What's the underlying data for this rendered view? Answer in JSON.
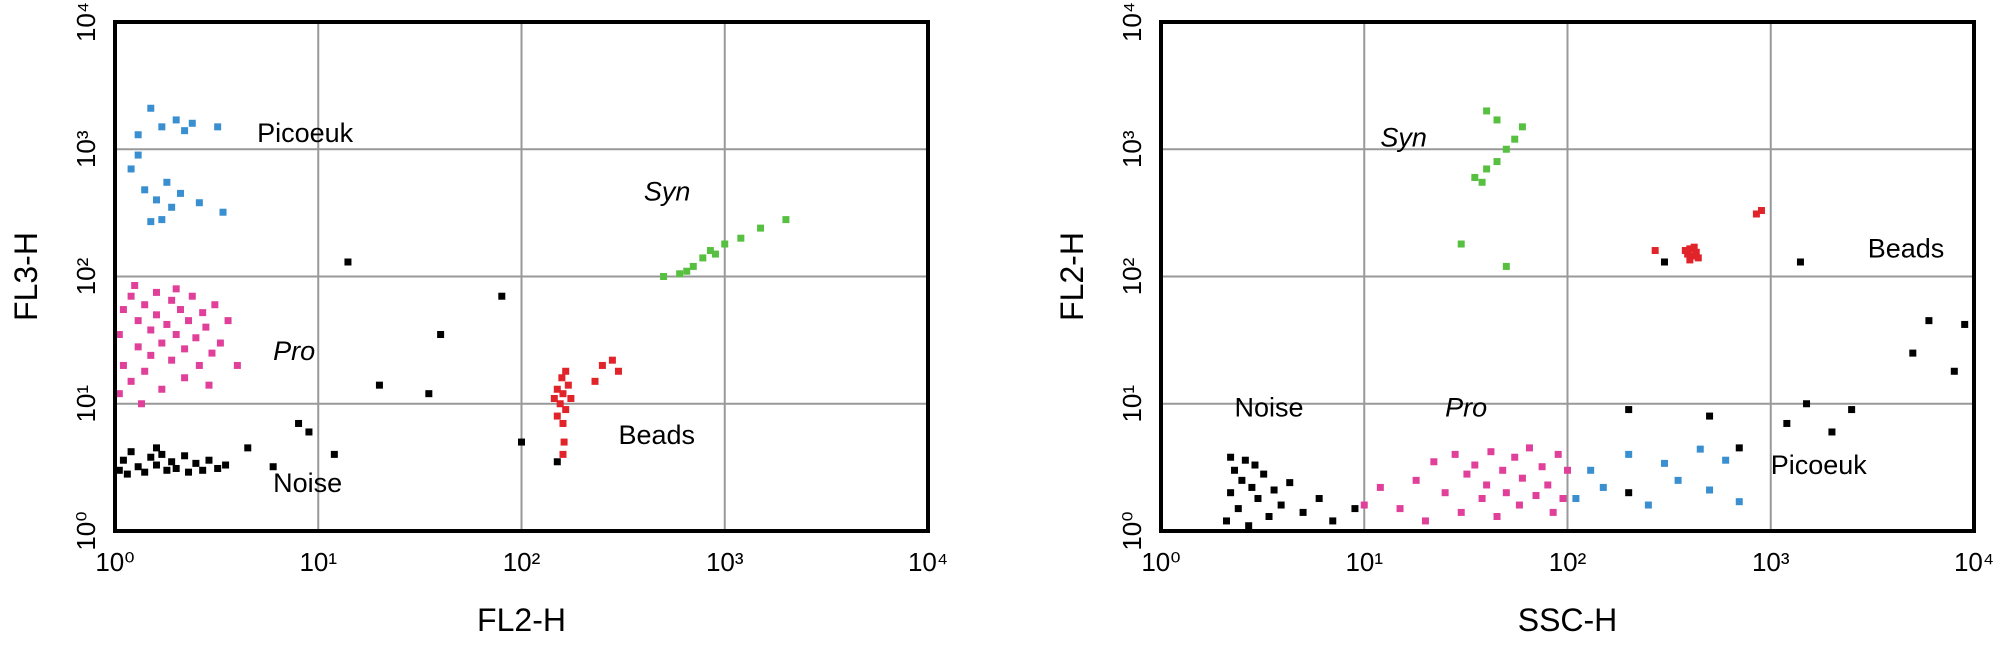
{
  "chart_data": [
    {
      "type": "scatter",
      "x_label": "FL2-H",
      "y_label": "FL3-H",
      "log_x": true,
      "log_y": true,
      "grid": true,
      "xlim": [
        1,
        10000
      ],
      "ylim": [
        1,
        10000
      ],
      "xticks": [
        {
          "value": 1,
          "label": "10⁰"
        },
        {
          "value": 10,
          "label": "10¹"
        },
        {
          "value": 100,
          "label": "10²"
        },
        {
          "value": 1000,
          "label": "10³"
        },
        {
          "value": 10000,
          "label": "10⁴"
        }
      ],
      "yticks": [
        {
          "value": 1,
          "label": "10⁰"
        },
        {
          "value": 10,
          "label": "10¹"
        },
        {
          "value": 100,
          "label": "10²"
        },
        {
          "value": 1000,
          "label": "10³"
        },
        {
          "value": 10000,
          "label": "10⁴"
        }
      ],
      "series": [
        {
          "name": "Picoeuk",
          "color": "#3a8fd0",
          "italic": false,
          "label_at": [
            5,
            1300
          ],
          "x": [
            1.3,
            1.5,
            1.7,
            2.0,
            2.4,
            3.2,
            1.2,
            1.4,
            1.6,
            1.8,
            2.1,
            2.6,
            3.4,
            1.5,
            1.7,
            1.3,
            2.2,
            1.9
          ],
          "y": [
            1300,
            2100,
            1500,
            1700,
            1600,
            1500,
            700,
            480,
            400,
            550,
            450,
            380,
            320,
            270,
            280,
            900,
            1400,
            350
          ]
        },
        {
          "name": "Syn",
          "color": "#58c040",
          "italic": true,
          "label_at": [
            400,
            450
          ],
          "x": [
            500,
            600,
            700,
            780,
            850,
            1000,
            1200,
            1500,
            2000,
            650,
            900
          ],
          "y": [
            100,
            105,
            120,
            140,
            160,
            180,
            200,
            240,
            280,
            110,
            150
          ]
        },
        {
          "name": "Pro",
          "color": "#e0409a",
          "italic": true,
          "label_at": [
            6,
            25
          ],
          "x": [
            1.05,
            1.1,
            1.05,
            1.1,
            1.2,
            1.2,
            1.3,
            1.3,
            1.4,
            1.4,
            1.5,
            1.5,
            1.6,
            1.6,
            1.7,
            1.7,
            1.8,
            1.9,
            1.9,
            2.0,
            2.1,
            2.2,
            2.2,
            2.3,
            2.4,
            2.5,
            2.6,
            2.7,
            2.8,
            3.0,
            3.1,
            3.3,
            3.6,
            4.0,
            1.25,
            2.0,
            1.35,
            2.9
          ],
          "y": [
            12,
            20,
            35,
            55,
            70,
            15,
            28,
            45,
            60,
            18,
            38,
            24,
            75,
            50,
            13,
            30,
            42,
            65,
            22,
            35,
            55,
            16,
            27,
            45,
            70,
            33,
            20,
            52,
            40,
            25,
            60,
            30,
            45,
            20,
            85,
            80,
            10,
            14
          ]
        },
        {
          "name": "Beads",
          "color": "#e0242a",
          "italic": false,
          "label_at": [
            300,
            5.5
          ],
          "x": [
            150,
            155,
            160,
            165,
            170,
            145,
            160,
            158,
            175,
            150,
            162,
            160,
            250,
            280,
            300,
            230,
            165
          ],
          "y": [
            8,
            10,
            12,
            9,
            14,
            11,
            7,
            16,
            11,
            13,
            5,
            4,
            20,
            22,
            18,
            15,
            18
          ]
        },
        {
          "name": "Noise",
          "color": "#000000",
          "italic": false,
          "label_at": [
            6,
            2.3
          ],
          "x": [
            1.05,
            1.1,
            1.2,
            1.3,
            1.4,
            1.5,
            1.6,
            1.7,
            1.8,
            1.9,
            2.0,
            2.2,
            2.3,
            2.5,
            2.7,
            2.9,
            3.2,
            3.5,
            1.15,
            1.6,
            4.5,
            6,
            8,
            14,
            12,
            40,
            35,
            100,
            80,
            20,
            150,
            9
          ],
          "y": [
            3,
            3.6,
            4.2,
            3.2,
            2.9,
            3.8,
            3.3,
            4.0,
            3.0,
            3.5,
            3.1,
            3.9,
            2.9,
            3.4,
            3.0,
            3.6,
            3.1,
            3.3,
            2.8,
            4.5,
            4.5,
            3.2,
            7,
            130,
            4,
            35,
            12,
            5,
            70,
            14,
            3.5,
            6
          ]
        }
      ]
    },
    {
      "type": "scatter",
      "x_label": "SSC-H",
      "y_label": "FL2-H",
      "log_x": true,
      "log_y": true,
      "grid": true,
      "xlim": [
        1,
        10000
      ],
      "ylim": [
        1,
        10000
      ],
      "xticks": [
        {
          "value": 1,
          "label": "10⁰"
        },
        {
          "value": 10,
          "label": "10¹"
        },
        {
          "value": 100,
          "label": "10²"
        },
        {
          "value": 1000,
          "label": "10³"
        },
        {
          "value": 10000,
          "label": "10⁴"
        }
      ],
      "yticks": [
        {
          "value": 1,
          "label": "10⁰"
        },
        {
          "value": 10,
          "label": "10¹"
        },
        {
          "value": 100,
          "label": "10²"
        },
        {
          "value": 1000,
          "label": "10³"
        },
        {
          "value": 10000,
          "label": "10⁴"
        }
      ],
      "series": [
        {
          "name": "Syn",
          "color": "#58c040",
          "italic": true,
          "label_at": [
            12,
            1200
          ],
          "x": [
            30,
            35,
            40,
            45,
            50,
            55,
            60,
            45,
            40,
            50,
            38
          ],
          "y": [
            180,
            600,
            700,
            800,
            1000,
            1200,
            1500,
            1700,
            2000,
            120,
            550
          ]
        },
        {
          "name": "Beads",
          "color": "#e0242a",
          "italic": false,
          "label_at": [
            3000,
            160
          ],
          "x": [
            390,
            400,
            410,
            420,
            430,
            380,
            440,
            400,
            850,
            900,
            270
          ],
          "y": [
            150,
            165,
            145,
            170,
            155,
            160,
            140,
            135,
            310,
            330,
            160
          ]
        },
        {
          "name": "Noise",
          "color": "#000000",
          "italic": false,
          "label_at": [
            2.3,
            9
          ],
          "x": [
            2.1,
            2.2,
            2.3,
            2.4,
            2.5,
            2.6,
            2.7,
            2.8,
            3.0,
            3.2,
            3.4,
            3.6,
            3.9,
            4.3,
            5,
            6,
            2.2,
            2.9,
            7,
            9,
            200,
            500,
            700,
            1200,
            1500,
            2500,
            2000,
            5000,
            6000,
            8000,
            9000,
            300,
            1400,
            200
          ],
          "y": [
            1.2,
            2.0,
            3.0,
            1.5,
            2.5,
            3.6,
            1.1,
            2.2,
            1.8,
            2.8,
            1.3,
            2.1,
            1.6,
            2.4,
            1.4,
            1.8,
            3.8,
            3.3,
            1.2,
            1.5,
            9,
            8,
            4.5,
            7,
            10,
            9,
            6,
            25,
            45,
            18,
            42,
            130,
            130,
            2
          ]
        },
        {
          "name": "Pro",
          "color": "#e0409a",
          "italic": true,
          "label_at": [
            25,
            9
          ],
          "x": [
            15,
            18,
            20,
            22,
            25,
            28,
            30,
            32,
            35,
            38,
            40,
            42,
            45,
            48,
            50,
            55,
            58,
            60,
            65,
            70,
            75,
            80,
            85,
            90,
            12,
            10,
            100,
            95
          ],
          "y": [
            1.5,
            2.5,
            1.2,
            3.5,
            2.0,
            4.0,
            1.4,
            2.8,
            3.3,
            1.8,
            2.3,
            4.2,
            1.3,
            3.0,
            2.0,
            3.8,
            1.6,
            2.6,
            4.5,
            1.9,
            3.2,
            2.3,
            1.4,
            4.0,
            2.2,
            1.6,
            3,
            1.8
          ]
        },
        {
          "name": "Picoeuk",
          "color": "#3a8fd0",
          "italic": false,
          "label_at": [
            1000,
            3.2
          ],
          "x": [
            110,
            130,
            150,
            200,
            250,
            300,
            350,
            450,
            500,
            600,
            700
          ],
          "y": [
            1.8,
            3,
            2.2,
            4,
            1.6,
            3.4,
            2.5,
            4.4,
            2.1,
            3.6,
            1.7
          ]
        }
      ]
    }
  ]
}
